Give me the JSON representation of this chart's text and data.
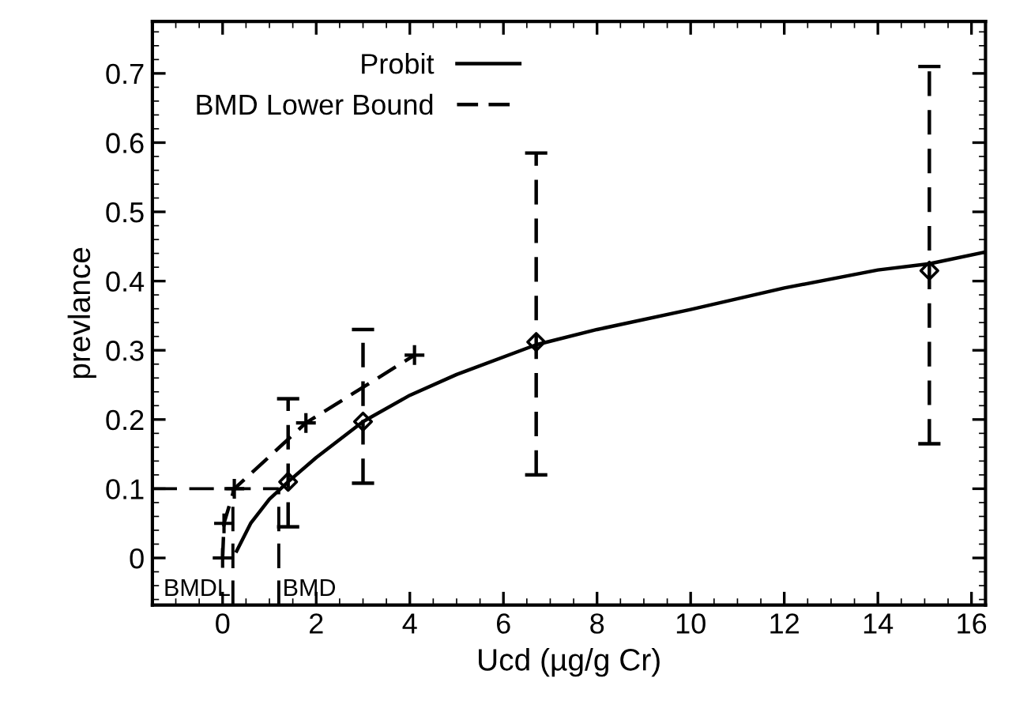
{
  "chart_data": {
    "type": "line",
    "xlabel": "Ucd (µg/g Cr)",
    "ylabel": "prevlance",
    "xlim": [
      -1.5,
      16.3
    ],
    "ylim": [
      -0.068,
      0.775
    ],
    "xticks": [
      0,
      2,
      4,
      6,
      8,
      10,
      12,
      14,
      16
    ],
    "yticks": [
      0,
      0.1,
      0.2,
      0.3,
      0.4,
      0.5,
      0.6,
      0.7
    ],
    "grid": false,
    "legend": "top left",
    "series": [
      {
        "type": "scatter",
        "color": "#000000",
        "marker": "diamond",
        "x": [
          1.4,
          3.0,
          6.7,
          15.1
        ],
        "values": [
          0.11,
          0.197,
          0.312,
          0.415
        ],
        "errors": [
          [
            0.045,
            0.23
          ],
          [
            0.108,
            0.33
          ],
          [
            0.12,
            0.585
          ],
          [
            0.165,
            0.71
          ]
        ]
      },
      {
        "name": "Probit",
        "color": "#000000",
        "line_style": "solid",
        "marker": "none",
        "x": [
          0.3,
          0.6,
          1.0,
          1.4,
          2.0,
          3.0,
          4.0,
          5.0,
          6.7,
          8.0,
          10.0,
          12.0,
          14.0,
          15.1,
          16.3
        ],
        "values": [
          0.01,
          0.05,
          0.085,
          0.11,
          0.145,
          0.197,
          0.235,
          0.265,
          0.308,
          0.33,
          0.359,
          0.39,
          0.416,
          0.425,
          0.442
        ]
      },
      {
        "name": "BMD Lower Bound",
        "color": "#000000",
        "line_style": "dashed",
        "marker": "cross",
        "x": [
          0.0,
          0.03,
          0.25,
          1.78,
          4.1
        ],
        "values": [
          0.0,
          0.05,
          0.1,
          0.195,
          0.293
        ]
      }
    ],
    "ref_lines": [
      {
        "axis": "y",
        "value": 0.1,
        "line_style": "dashed",
        "color": "#000000"
      },
      {
        "axis": "x",
        "value": 0.22,
        "label": "BMDL",
        "line_style": "dashed",
        "color": "#000000"
      },
      {
        "axis": "x",
        "value": 1.2,
        "label": "BMD",
        "line_style": "dashed",
        "color": "#000000"
      }
    ]
  }
}
